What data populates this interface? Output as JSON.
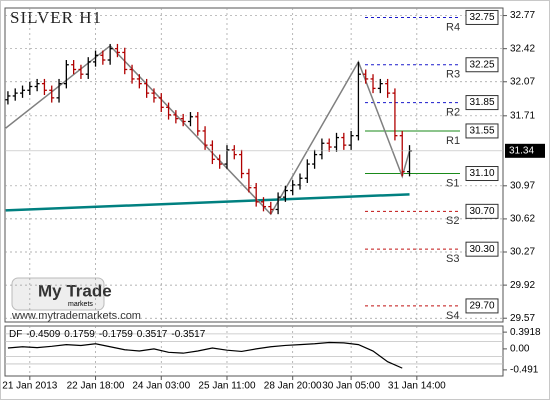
{
  "chart_data": {
    "type": "ohlc",
    "title": "SILVER H1",
    "watermark": "My Trade",
    "watermark_sub": "markets",
    "url": "www.mytrademarkets.com",
    "up_color": "#000000",
    "down_color": "#b00000",
    "grid": true,
    "xlim": [
      -0.4,
      67.8
    ],
    "ylim": [
      29.53,
      32.85
    ],
    "yticks": [
      32.77,
      32.42,
      32.07,
      31.71,
      30.97,
      30.62,
      30.27,
      29.92,
      29.57
    ],
    "xticks": [
      {
        "value": 3,
        "label": "21 Jan 2013"
      },
      {
        "value": 12,
        "label": "22 Jan 18:00"
      },
      {
        "value": 21,
        "label": "24 Jan 03:00"
      },
      {
        "value": 30,
        "label": "25 Jan 11:00"
      },
      {
        "value": 39,
        "label": "28 Jan 20:00"
      },
      {
        "value": 47,
        "label": "30 Jan 05:00"
      },
      {
        "value": 56,
        "label": "31 Jan 14:00"
      }
    ],
    "open": [
      31.88,
      31.92,
      31.95,
      31.98,
      32.02,
      32.05,
      31.98,
      31.9,
      32.05,
      32.25,
      32.2,
      32.15,
      32.28,
      32.35,
      32.3,
      32.42,
      32.38,
      32.2,
      32.1,
      32.05,
      31.95,
      31.9,
      31.8,
      31.72,
      31.68,
      31.65,
      31.7,
      31.55,
      31.4,
      31.25,
      31.2,
      31.35,
      31.3,
      31.1,
      30.95,
      30.8,
      30.75,
      30.72,
      30.85,
      30.92,
      30.98,
      31.05,
      31.2,
      31.3,
      31.42,
      31.38,
      31.48,
      31.4,
      31.5,
      32.15,
      32.1,
      32.0,
      32.05,
      31.95,
      31.5,
      31.12
    ],
    "high": [
      31.97,
      32.0,
      32.03,
      32.07,
      32.1,
      32.1,
      32.03,
      32.1,
      32.3,
      32.3,
      32.25,
      32.33,
      32.4,
      32.4,
      32.47,
      32.47,
      32.43,
      32.25,
      32.15,
      32.1,
      32.0,
      31.95,
      31.85,
      31.77,
      31.73,
      31.75,
      31.75,
      31.6,
      31.45,
      31.3,
      31.4,
      31.4,
      31.35,
      31.15,
      31.0,
      30.85,
      30.8,
      30.9,
      30.97,
      31.03,
      31.1,
      31.25,
      31.35,
      31.47,
      31.47,
      31.53,
      31.53,
      31.55,
      32.28,
      32.2,
      32.15,
      32.1,
      32.1,
      32.0,
      31.55,
      31.4
    ],
    "low": [
      31.83,
      31.87,
      31.9,
      31.93,
      31.97,
      31.93,
      31.85,
      31.85,
      32.0,
      32.15,
      32.1,
      32.1,
      32.23,
      32.25,
      32.25,
      32.33,
      32.15,
      32.05,
      32.0,
      31.9,
      31.85,
      31.75,
      31.67,
      31.63,
      31.6,
      31.6,
      31.5,
      31.35,
      31.2,
      31.15,
      31.15,
      31.25,
      31.05,
      30.9,
      30.75,
      30.7,
      30.67,
      30.67,
      30.8,
      30.87,
      30.93,
      31.0,
      31.15,
      31.25,
      31.33,
      31.33,
      31.35,
      31.35,
      31.45,
      32.05,
      31.95,
      31.95,
      31.9,
      31.45,
      31.07,
      31.07
    ],
    "close": [
      31.92,
      31.95,
      31.98,
      32.02,
      32.05,
      31.98,
      31.9,
      32.05,
      32.25,
      32.2,
      32.15,
      32.28,
      32.35,
      32.3,
      32.42,
      32.38,
      32.2,
      32.1,
      32.05,
      31.95,
      31.9,
      31.8,
      31.72,
      31.68,
      31.65,
      31.7,
      31.55,
      31.4,
      31.25,
      31.2,
      31.35,
      31.3,
      31.1,
      30.95,
      30.8,
      30.75,
      30.72,
      30.85,
      30.92,
      30.98,
      31.05,
      31.2,
      31.3,
      31.42,
      31.38,
      31.48,
      31.4,
      31.5,
      32.15,
      32.1,
      32.0,
      32.05,
      31.95,
      31.5,
      31.12,
      31.34
    ],
    "zigzag": {
      "color": "#808080",
      "x": [
        -0.3,
        14,
        36,
        48,
        54,
        55
      ],
      "values": [
        31.58,
        32.45,
        30.67,
        32.28,
        31.07,
        31.34
      ]
    },
    "trend_line": {
      "color": "#008080",
      "x": [
        -0.3,
        55
      ],
      "values": [
        30.71,
        30.88
      ]
    },
    "levels": [
      {
        "name": "R4",
        "value": 32.75,
        "color": "#1a1acc",
        "style": "dashed"
      },
      {
        "name": "R3",
        "value": 32.25,
        "color": "#1a1acc",
        "style": "dashed"
      },
      {
        "name": "R2",
        "value": 31.85,
        "color": "#1a1acc",
        "style": "dashed"
      },
      {
        "name": "R1",
        "value": 31.55,
        "color": "#1a8a1a",
        "style": "solid"
      },
      {
        "name": "S1",
        "value": 31.1,
        "value_label": "31.10",
        "color": "#1a8a1a",
        "style": "solid"
      },
      {
        "name": "S2",
        "value": 30.7,
        "value_label": "30.70",
        "color": "#c01010",
        "style": "dashed"
      },
      {
        "name": "S3",
        "value": 30.3,
        "value_label": "30.30",
        "color": "#c01010",
        "style": "dashed"
      },
      {
        "name": "S4",
        "value": 29.7,
        "value_label": "29.70",
        "color": "#c01010",
        "style": "dashed"
      }
    ],
    "indicator": {
      "name": "DF",
      "readout": [
        -0.4509,
        0.1759,
        -0.1759,
        0.3517,
        -0.3517
      ],
      "color": "#000000",
      "ylim": [
        -0.634,
        0.535
      ],
      "yticks": [
        0.3918,
        {
          "value": 0,
          "label": "0.00"
        },
        -0.491
      ],
      "x": [
        0,
        2,
        4,
        6,
        8,
        10,
        12,
        14,
        16,
        18,
        20,
        22,
        24,
        26,
        28,
        30,
        32,
        34,
        36,
        38,
        40,
        42,
        44,
        46,
        48,
        50,
        52,
        54
      ],
      "values": [
        0.02,
        0.05,
        0.03,
        0.06,
        0.1,
        0.08,
        0.12,
        0.05,
        -0.02,
        -0.05,
        0.0,
        -0.08,
        -0.1,
        -0.05,
        0.02,
        -0.03,
        -0.06,
        0.0,
        0.05,
        0.08,
        0.1,
        0.12,
        0.15,
        0.14,
        0.1,
        -0.05,
        -0.3,
        -0.45
      ]
    }
  }
}
